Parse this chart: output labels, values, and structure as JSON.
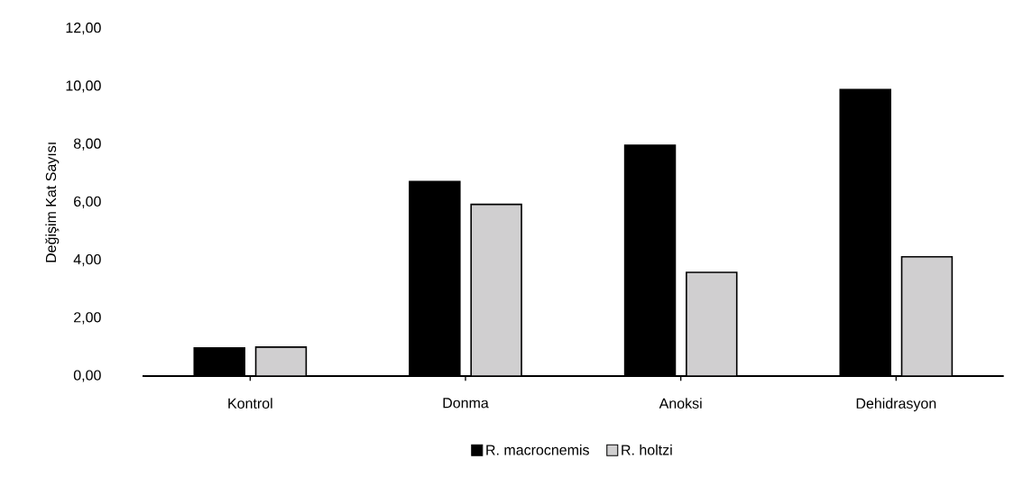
{
  "chart_data": {
    "type": "bar",
    "ylabel": "Değişim Kat Sayısı",
    "categories": [
      "Kontrol",
      "Donma",
      "Anoksi",
      "Dehidrasyon"
    ],
    "series": [
      {
        "name": "R. macrocnemis",
        "color": "#000000",
        "values": [
          0.97,
          6.72,
          7.97,
          9.89
        ]
      },
      {
        "name": "R. holtzi",
        "color": "#d0cfd0",
        "values": [
          1.0,
          5.93,
          3.58,
          4.12
        ]
      }
    ],
    "ylim": [
      0,
      12
    ],
    "yticks": [
      {
        "value": 0,
        "label": "0,00"
      },
      {
        "value": 2,
        "label": "2,00"
      },
      {
        "value": 4,
        "label": "4,00"
      },
      {
        "value": 6,
        "label": "6,00"
      },
      {
        "value": 8,
        "label": "8,00"
      },
      {
        "value": 10,
        "label": "10,00"
      },
      {
        "value": 12,
        "label": "12,00"
      }
    ],
    "legend": "bottom"
  }
}
